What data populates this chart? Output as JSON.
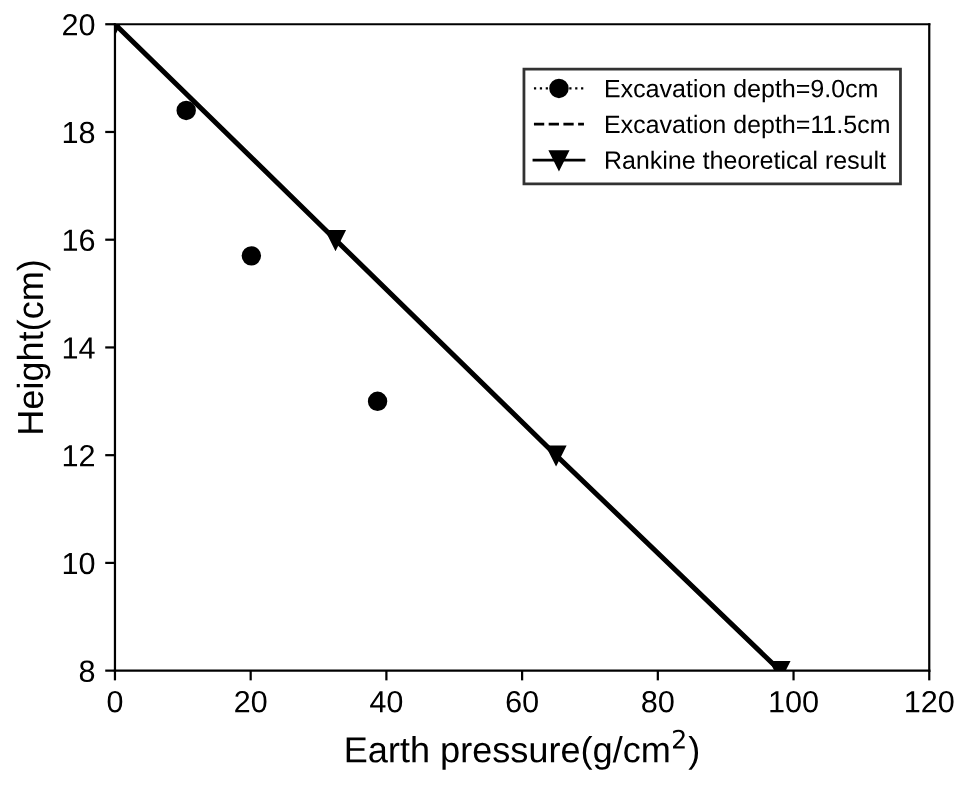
{
  "chart_data": {
    "type": "line",
    "xlabel": "Earth pressure(g/cm$^{2}$)",
    "ylabel": "Height(cm)",
    "xlim": [
      0,
      120
    ],
    "xticks": [
      0,
      20,
      40,
      60,
      80,
      100,
      120
    ],
    "ylim": [
      8,
      20
    ],
    "yticks": [
      8,
      10,
      12,
      14,
      16,
      18,
      20
    ],
    "grid": false,
    "legend": "top right",
    "series": [
      {
        "name": "Excavation depth=9.0cm",
        "type": "scatter",
        "marker": "circle",
        "color": "#000000",
        "x": [
          10.5,
          20.1,
          38.7
        ],
        "values": [
          18.4,
          15.7,
          13.0
        ]
      },
      {
        "name": "Excavation depth=11.5cm",
        "marker": "none",
        "line_style": "dashed",
        "color": "#000000"
      },
      {
        "name": "Rankine theoretical result",
        "marker": "triangle",
        "line_style": "solid",
        "color": "#000000",
        "x": [
          0,
          32.5,
          65,
          98
        ],
        "values": [
          20,
          16,
          12,
          8
        ]
      }
    ]
  }
}
